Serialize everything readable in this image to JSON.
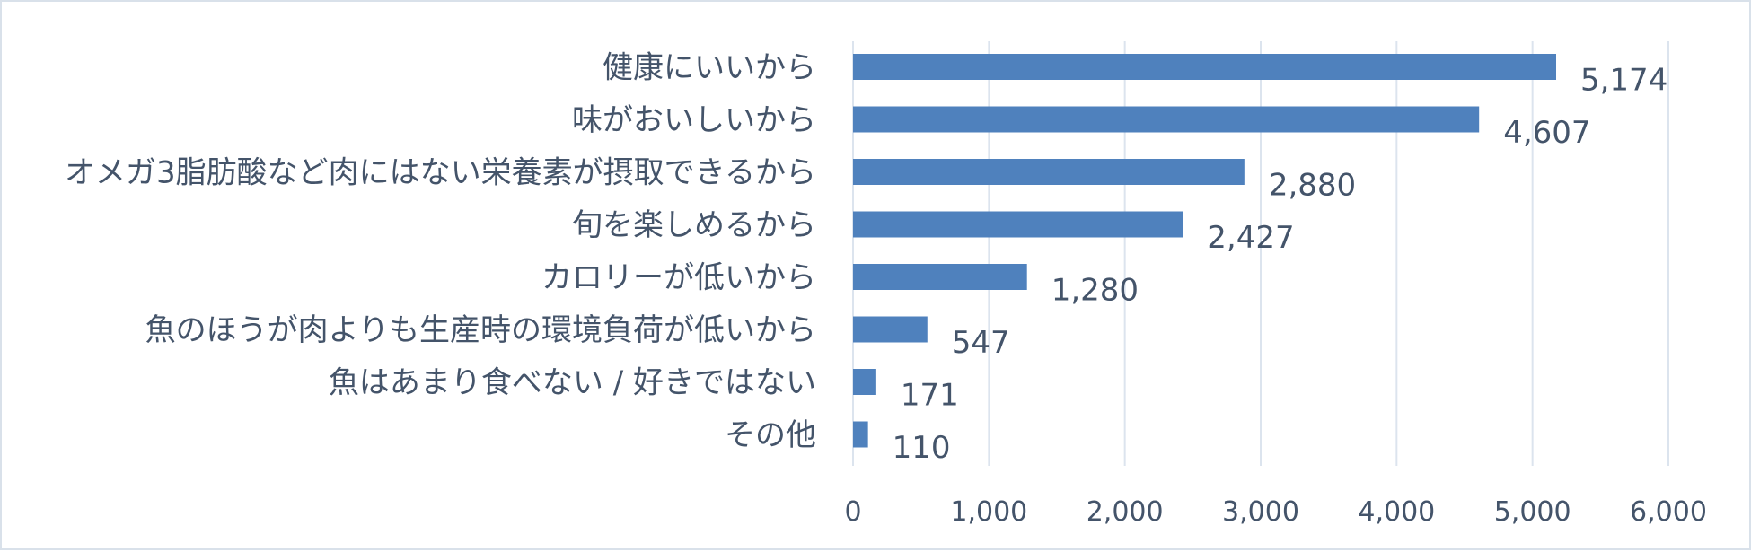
{
  "chart_data": {
    "type": "bar",
    "orientation": "horizontal",
    "categories": [
      "健康にいいから",
      "味がおいしいから",
      "オメガ3脂肪酸など肉にはない栄養素が摂取できるから",
      "旬を楽しめるから",
      "カロリーが低いから",
      "魚のほうが肉よりも生産時の環境負荷が低いから",
      "魚はあまり食べない / 好きではない",
      "その他"
    ],
    "values": [
      5174,
      4607,
      2880,
      2427,
      1280,
      547,
      171,
      110
    ],
    "value_labels": [
      "5,174",
      "4,607",
      "2,880",
      "2,427",
      "1,280",
      "547",
      "171",
      "110"
    ],
    "xlim": [
      0,
      6000
    ],
    "xticks": [
      0,
      1000,
      2000,
      3000,
      4000,
      5000,
      6000
    ],
    "xtick_labels": [
      "0",
      "1,000",
      "2,000",
      "3,000",
      "4,000",
      "5,000",
      "6,000"
    ],
    "grid": true,
    "bar_color": "#4f81bd",
    "title": "",
    "xlabel": "",
    "ylabel": ""
  }
}
